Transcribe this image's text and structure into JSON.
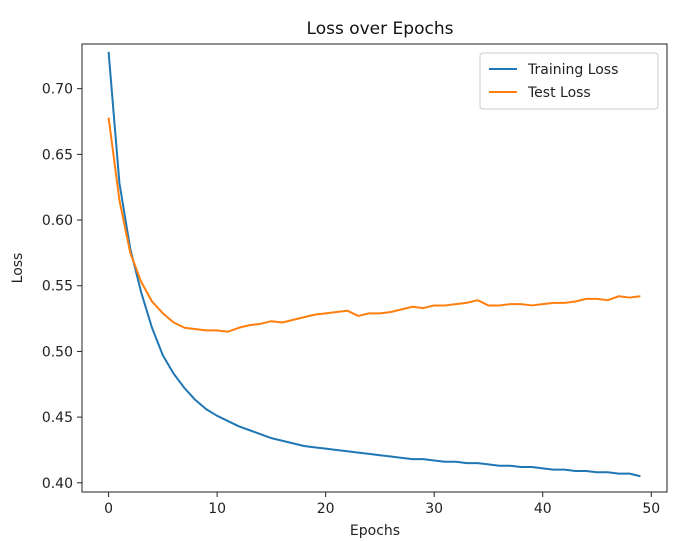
{
  "chart_data": {
    "type": "line",
    "title": "Loss over Epochs",
    "xlabel": "Epochs",
    "ylabel": "Loss",
    "xlim": [
      -2.45,
      51.45
    ],
    "ylim": [
      0.393,
      0.734
    ],
    "xticks": [
      0,
      10,
      20,
      30,
      40,
      50
    ],
    "yticks": [
      0.4,
      0.45,
      0.5,
      0.55,
      0.6,
      0.65,
      0.7
    ],
    "xtick_labels": [
      "0",
      "10",
      "20",
      "30",
      "40",
      "50"
    ],
    "ytick_labels": [
      "0.40",
      "0.45",
      "0.50",
      "0.55",
      "0.60",
      "0.65",
      "0.70"
    ],
    "grid": false,
    "legend_position": "top-right",
    "x": [
      0,
      1,
      2,
      3,
      4,
      5,
      6,
      7,
      8,
      9,
      10,
      11,
      12,
      13,
      14,
      15,
      16,
      17,
      18,
      19,
      20,
      21,
      22,
      23,
      24,
      25,
      26,
      27,
      28,
      29,
      30,
      31,
      32,
      33,
      34,
      35,
      36,
      37,
      38,
      39,
      40,
      41,
      42,
      43,
      44,
      45,
      46,
      47,
      48,
      49
    ],
    "series": [
      {
        "name": "Training Loss",
        "color": "#1f77b4",
        "values": [
          0.728,
          0.628,
          0.578,
          0.545,
          0.518,
          0.497,
          0.483,
          0.472,
          0.463,
          0.456,
          0.451,
          0.447,
          0.443,
          0.44,
          0.437,
          0.434,
          0.432,
          0.43,
          0.428,
          0.427,
          0.426,
          0.425,
          0.424,
          0.423,
          0.422,
          0.421,
          0.42,
          0.419,
          0.418,
          0.418,
          0.417,
          0.416,
          0.416,
          0.415,
          0.415,
          0.414,
          0.413,
          0.413,
          0.412,
          0.412,
          0.411,
          0.41,
          0.41,
          0.409,
          0.409,
          0.408,
          0.408,
          0.407,
          0.407,
          0.405
        ]
      },
      {
        "name": "Test Loss",
        "color": "#ff7f0e",
        "values": [
          0.678,
          0.615,
          0.575,
          0.553,
          0.538,
          0.529,
          0.522,
          0.518,
          0.517,
          0.516,
          0.516,
          0.515,
          0.518,
          0.52,
          0.521,
          0.523,
          0.522,
          0.524,
          0.526,
          0.528,
          0.529,
          0.53,
          0.531,
          0.527,
          0.529,
          0.529,
          0.53,
          0.532,
          0.534,
          0.533,
          0.535,
          0.535,
          0.536,
          0.537,
          0.539,
          0.535,
          0.535,
          0.536,
          0.536,
          0.535,
          0.536,
          0.537,
          0.537,
          0.538,
          0.54,
          0.54,
          0.539,
          0.542,
          0.541,
          0.542
        ]
      }
    ]
  }
}
